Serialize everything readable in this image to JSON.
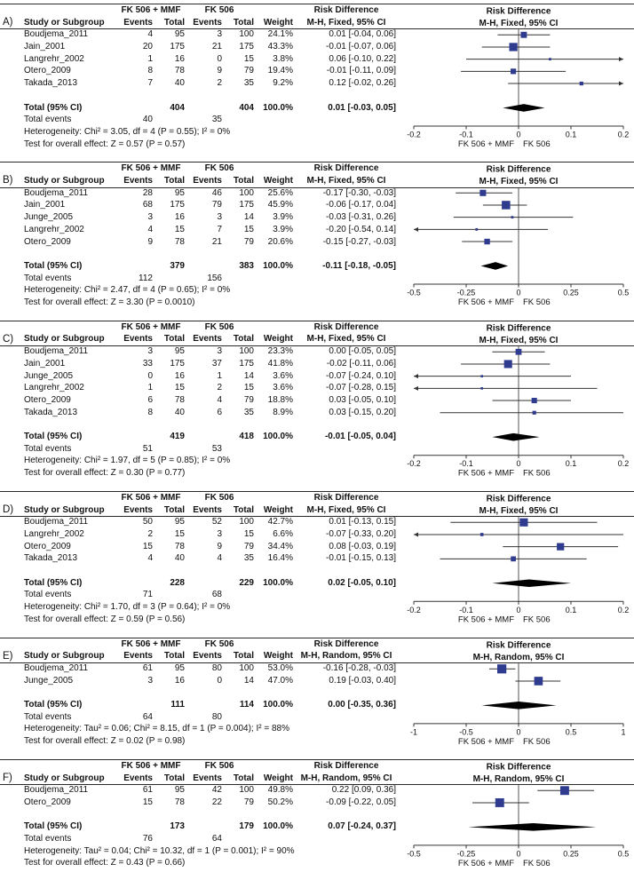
{
  "chart_data": {
    "type": "forest",
    "description": "Meta-analysis forest plots of risk difference comparing FK 506 + MMF versus FK 506, six outcome panels A-F",
    "colors": {
      "square": "#2f3b8f",
      "diamond": "#000000",
      "line": "#333333",
      "axis": "#333333",
      "text": "#111111"
    },
    "labels": {
      "group1": "FK 506 + MMF",
      "group2": "FK 506",
      "effect": "Risk Difference",
      "study_col": "Study or Subgroup",
      "events_col": "Events",
      "total_col": "Total",
      "weight_col": "Weight",
      "total_row": "Total (95% CI)",
      "total_events_row": "Total events"
    },
    "panels": [
      {
        "label": "A)",
        "method": "M-H, Fixed, 95% CI",
        "studies": [
          {
            "name": "Boudjema_2011",
            "events1": 4,
            "total1": 95,
            "events2": 3,
            "total2": 100,
            "weight": "24.1%",
            "weight_pct": 24.1,
            "estimate": 0.01,
            "ci_lower": -0.04,
            "ci_upper": 0.06,
            "ci_label": "0.01 [-0.04, 0.06]"
          },
          {
            "name": "Jain_2001",
            "events1": 20,
            "total1": 175,
            "events2": 21,
            "total2": 175,
            "weight": "43.3%",
            "weight_pct": 43.3,
            "estimate": -0.01,
            "ci_lower": -0.07,
            "ci_upper": 0.06,
            "ci_label": "-0.01 [-0.07, 0.06]"
          },
          {
            "name": "Langrehr_2002",
            "events1": 1,
            "total1": 16,
            "events2": 0,
            "total2": 15,
            "weight": "3.8%",
            "weight_pct": 3.8,
            "estimate": 0.06,
            "ci_lower": -0.1,
            "ci_upper": 0.22,
            "ci_label": "0.06 [-0.10, 0.22]"
          },
          {
            "name": "Otero_2009",
            "events1": 8,
            "total1": 78,
            "events2": 9,
            "total2": 79,
            "weight": "19.4%",
            "weight_pct": 19.4,
            "estimate": -0.01,
            "ci_lower": -0.11,
            "ci_upper": 0.09,
            "ci_label": "-0.01 [-0.11, 0.09]"
          },
          {
            "name": "Takada_2013",
            "events1": 7,
            "total1": 40,
            "events2": 2,
            "total2": 35,
            "weight": "9.2%",
            "weight_pct": 9.2,
            "estimate": 0.12,
            "ci_lower": -0.02,
            "ci_upper": 0.26,
            "ci_label": "0.12 [-0.02, 0.26]"
          }
        ],
        "total": {
          "total1": 404,
          "total2": 404,
          "weight": "100.0%",
          "estimate": 0.01,
          "ci_lower": -0.03,
          "ci_upper": 0.05,
          "ci_label": "0.01 [-0.03, 0.05]"
        },
        "total_events": {
          "events1": 40,
          "events2": 35
        },
        "heterogeneity": "Heterogeneity: Chi² = 3.05, df = 4 (P = 0.55); I² = 0%",
        "overall_effect": "Test for overall effect: Z = 0.57 (P = 0.57)",
        "axis": {
          "min": -0.2,
          "max": 0.2,
          "tick_values": [
            -0.2,
            -0.1,
            0,
            0.1,
            0.2
          ],
          "tick_labels": [
            "-0.2",
            "-0.1",
            "0",
            "0.1",
            "0.2"
          ],
          "favours_left": "FK 506 + MMF",
          "favours_right": "FK 506"
        }
      },
      {
        "label": "B)",
        "method": "M-H, Fixed, 95% CI",
        "studies": [
          {
            "name": "Boudjema_2011",
            "events1": 28,
            "total1": 95,
            "events2": 46,
            "total2": 100,
            "weight": "25.6%",
            "weight_pct": 25.6,
            "estimate": -0.17,
            "ci_lower": -0.3,
            "ci_upper": -0.03,
            "ci_label": "-0.17 [-0.30, -0.03]"
          },
          {
            "name": "Jain_2001",
            "events1": 68,
            "total1": 175,
            "events2": 79,
            "total2": 175,
            "weight": "45.9%",
            "weight_pct": 45.9,
            "estimate": -0.06,
            "ci_lower": -0.17,
            "ci_upper": 0.04,
            "ci_label": "-0.06 [-0.17, 0.04]"
          },
          {
            "name": "Junge_2005",
            "events1": 3,
            "total1": 16,
            "events2": 3,
            "total2": 14,
            "weight": "3.9%",
            "weight_pct": 3.9,
            "estimate": -0.03,
            "ci_lower": -0.31,
            "ci_upper": 0.26,
            "ci_label": "-0.03 [-0.31, 0.26]"
          },
          {
            "name": "Langrehr_2002",
            "events1": 4,
            "total1": 15,
            "events2": 7,
            "total2": 15,
            "weight": "3.9%",
            "weight_pct": 3.9,
            "estimate": -0.2,
            "ci_lower": -0.54,
            "ci_upper": 0.14,
            "ci_label": "-0.20 [-0.54, 0.14]"
          },
          {
            "name": "Otero_2009",
            "events1": 9,
            "total1": 78,
            "events2": 21,
            "total2": 79,
            "weight": "20.6%",
            "weight_pct": 20.6,
            "estimate": -0.15,
            "ci_lower": -0.27,
            "ci_upper": -0.03,
            "ci_label": "-0.15 [-0.27, -0.03]"
          }
        ],
        "total": {
          "total1": 379,
          "total2": 383,
          "weight": "100.0%",
          "estimate": -0.11,
          "ci_lower": -0.18,
          "ci_upper": -0.05,
          "ci_label": "-0.11 [-0.18, -0.05]"
        },
        "total_events": {
          "events1": 112,
          "events2": 156
        },
        "heterogeneity": "Heterogeneity: Chi² = 2.47, df = 4 (P = 0.65); I² = 0%",
        "overall_effect": "Test for overall effect: Z = 3.30 (P = 0.0010)",
        "axis": {
          "min": -0.5,
          "max": 0.5,
          "tick_values": [
            -0.5,
            -0.25,
            0,
            0.25,
            0.5
          ],
          "tick_labels": [
            "-0.5",
            "-0.25",
            "0",
            "0.25",
            "0.5"
          ],
          "favours_left": "FK 506 + MMF",
          "favours_right": "FK 506"
        }
      },
      {
        "label": "C)",
        "method": "M-H, Fixed, 95% CI",
        "studies": [
          {
            "name": "Boudjema_2011",
            "events1": 3,
            "total1": 95,
            "events2": 3,
            "total2": 100,
            "weight": "23.3%",
            "weight_pct": 23.3,
            "estimate": 0.0,
            "ci_lower": -0.05,
            "ci_upper": 0.05,
            "ci_label": "0.00 [-0.05, 0.05]"
          },
          {
            "name": "Jain_2001",
            "events1": 33,
            "total1": 175,
            "events2": 37,
            "total2": 175,
            "weight": "41.8%",
            "weight_pct": 41.8,
            "estimate": -0.02,
            "ci_lower": -0.11,
            "ci_upper": 0.06,
            "ci_label": "-0.02 [-0.11, 0.06]"
          },
          {
            "name": "Junge_2005",
            "events1": 0,
            "total1": 16,
            "events2": 1,
            "total2": 14,
            "weight": "3.6%",
            "weight_pct": 3.6,
            "estimate": -0.07,
            "ci_lower": -0.24,
            "ci_upper": 0.1,
            "ci_label": "-0.07 [-0.24, 0.10]"
          },
          {
            "name": "Langrehr_2002",
            "events1": 1,
            "total1": 15,
            "events2": 2,
            "total2": 15,
            "weight": "3.6%",
            "weight_pct": 3.6,
            "estimate": -0.07,
            "ci_lower": -0.28,
            "ci_upper": 0.15,
            "ci_label": "-0.07 [-0.28, 0.15]"
          },
          {
            "name": "Otero_2009",
            "events1": 6,
            "total1": 78,
            "events2": 4,
            "total2": 79,
            "weight": "18.8%",
            "weight_pct": 18.8,
            "estimate": 0.03,
            "ci_lower": -0.05,
            "ci_upper": 0.1,
            "ci_label": "0.03 [-0.05, 0.10]"
          },
          {
            "name": "Takada_2013",
            "events1": 8,
            "total1": 40,
            "events2": 6,
            "total2": 35,
            "weight": "8.9%",
            "weight_pct": 8.9,
            "estimate": 0.03,
            "ci_lower": -0.15,
            "ci_upper": 0.2,
            "ci_label": "0.03 [-0.15, 0.20]"
          }
        ],
        "total": {
          "total1": 419,
          "total2": 418,
          "weight": "100.0%",
          "estimate": -0.01,
          "ci_lower": -0.05,
          "ci_upper": 0.04,
          "ci_label": "-0.01 [-0.05, 0.04]"
        },
        "total_events": {
          "events1": 51,
          "events2": 53
        },
        "heterogeneity": "Heterogeneity: Chi² = 1.97, df = 5 (P = 0.85); I² = 0%",
        "overall_effect": "Test for overall effect: Z = 0.30 (P = 0.77)",
        "axis": {
          "min": -0.2,
          "max": 0.2,
          "tick_values": [
            -0.2,
            -0.1,
            0,
            0.1,
            0.2
          ],
          "tick_labels": [
            "-0.2",
            "-0.1",
            "0",
            "0.1",
            "0.2"
          ],
          "favours_left": "FK 506 + MMF",
          "favours_right": "FK 506"
        }
      },
      {
        "label": "D)",
        "method": "M-H, Fixed, 95% CI",
        "studies": [
          {
            "name": "Boudjema_2011",
            "events1": 50,
            "total1": 95,
            "events2": 52,
            "total2": 100,
            "weight": "42.7%",
            "weight_pct": 42.7,
            "estimate": 0.01,
            "ci_lower": -0.13,
            "ci_upper": 0.15,
            "ci_label": "0.01 [-0.13, 0.15]"
          },
          {
            "name": "Langrehr_2002",
            "events1": 2,
            "total1": 15,
            "events2": 3,
            "total2": 15,
            "weight": "6.6%",
            "weight_pct": 6.6,
            "estimate": -0.07,
            "ci_lower": -0.33,
            "ci_upper": 0.2,
            "ci_label": "-0.07 [-0.33, 0.20]"
          },
          {
            "name": "Otero_2009",
            "events1": 15,
            "total1": 78,
            "events2": 9,
            "total2": 79,
            "weight": "34.4%",
            "weight_pct": 34.4,
            "estimate": 0.08,
            "ci_lower": -0.03,
            "ci_upper": 0.19,
            "ci_label": "0.08 [-0.03, 0.19]"
          },
          {
            "name": "Takada_2013",
            "events1": 4,
            "total1": 40,
            "events2": 4,
            "total2": 35,
            "weight": "16.4%",
            "weight_pct": 16.4,
            "estimate": -0.01,
            "ci_lower": -0.15,
            "ci_upper": 0.13,
            "ci_label": "-0.01 [-0.15, 0.13]"
          }
        ],
        "total": {
          "total1": 228,
          "total2": 229,
          "weight": "100.0%",
          "estimate": 0.02,
          "ci_lower": -0.05,
          "ci_upper": 0.1,
          "ci_label": "0.02 [-0.05, 0.10]"
        },
        "total_events": {
          "events1": 71,
          "events2": 68
        },
        "heterogeneity": "Heterogeneity: Chi² = 1.70, df = 3 (P = 0.64); I² = 0%",
        "overall_effect": "Test for overall effect: Z = 0.59 (P = 0.56)",
        "axis": {
          "min": -0.2,
          "max": 0.2,
          "tick_values": [
            -0.2,
            -0.1,
            0,
            0.1,
            0.2
          ],
          "tick_labels": [
            "-0.2",
            "-0.1",
            "0",
            "0.1",
            "0.2"
          ],
          "favours_left": "FK 506 + MMF",
          "favours_right": "FK 506"
        }
      },
      {
        "label": "E)",
        "method": "M-H, Random, 95% CI",
        "studies": [
          {
            "name": "Boudjema_2011",
            "events1": 61,
            "total1": 95,
            "events2": 80,
            "total2": 100,
            "weight": "53.0%",
            "weight_pct": 53.0,
            "estimate": -0.16,
            "ci_lower": -0.28,
            "ci_upper": -0.03,
            "ci_label": "-0.16 [-0.28, -0.03]"
          },
          {
            "name": "Junge_2005",
            "events1": 3,
            "total1": 16,
            "events2": 0,
            "total2": 14,
            "weight": "47.0%",
            "weight_pct": 47.0,
            "estimate": 0.19,
            "ci_lower": -0.03,
            "ci_upper": 0.4,
            "ci_label": "0.19 [-0.03, 0.40]"
          }
        ],
        "total": {
          "total1": 111,
          "total2": 114,
          "weight": "100.0%",
          "estimate": 0.0,
          "ci_lower": -0.35,
          "ci_upper": 0.36,
          "ci_label": "0.00 [-0.35, 0.36]"
        },
        "total_events": {
          "events1": 64,
          "events2": 80
        },
        "heterogeneity": "Heterogeneity: Tau² = 0.06; Chi² = 8.15, df = 1 (P = 0.004); I² = 88%",
        "overall_effect": "Test for overall effect: Z = 0.02 (P = 0.98)",
        "axis": {
          "min": -1,
          "max": 1,
          "tick_values": [
            -1,
            -0.5,
            0,
            0.5,
            1
          ],
          "tick_labels": [
            "-1",
            "-0.5",
            "0",
            "0.5",
            "1"
          ],
          "favours_left": "FK 506 + MMF",
          "favours_right": "FK 506"
        }
      },
      {
        "label": "F)",
        "method": "M-H, Random, 95% CI",
        "studies": [
          {
            "name": "Boudjema_2011",
            "events1": 61,
            "total1": 95,
            "events2": 42,
            "total2": 100,
            "weight": "49.8%",
            "weight_pct": 49.8,
            "estimate": 0.22,
            "ci_lower": 0.09,
            "ci_upper": 0.36,
            "ci_label": "0.22 [0.09, 0.36]"
          },
          {
            "name": "Otero_2009",
            "events1": 15,
            "total1": 78,
            "events2": 22,
            "total2": 79,
            "weight": "50.2%",
            "weight_pct": 50.2,
            "estimate": -0.09,
            "ci_lower": -0.22,
            "ci_upper": 0.05,
            "ci_label": "-0.09 [-0.22, 0.05]"
          }
        ],
        "total": {
          "total1": 173,
          "total2": 179,
          "weight": "100.0%",
          "estimate": 0.07,
          "ci_lower": -0.24,
          "ci_upper": 0.37,
          "ci_label": "0.07 [-0.24, 0.37]"
        },
        "total_events": {
          "events1": 76,
          "events2": 64
        },
        "heterogeneity": "Heterogeneity: Tau² = 0.04; Chi² = 10.32, df = 1 (P = 0.001); I² = 90%",
        "overall_effect": "Test for overall effect: Z = 0.43 (P = 0.66)",
        "axis": {
          "min": -0.5,
          "max": 0.5,
          "tick_values": [
            -0.5,
            -0.25,
            0,
            0.25,
            0.5
          ],
          "tick_labels": [
            "-0.5",
            "-0.25",
            "0",
            "0.25",
            "0.5"
          ],
          "favours_left": "FK 506 + MMF",
          "favours_right": "FK 506"
        }
      }
    ]
  }
}
